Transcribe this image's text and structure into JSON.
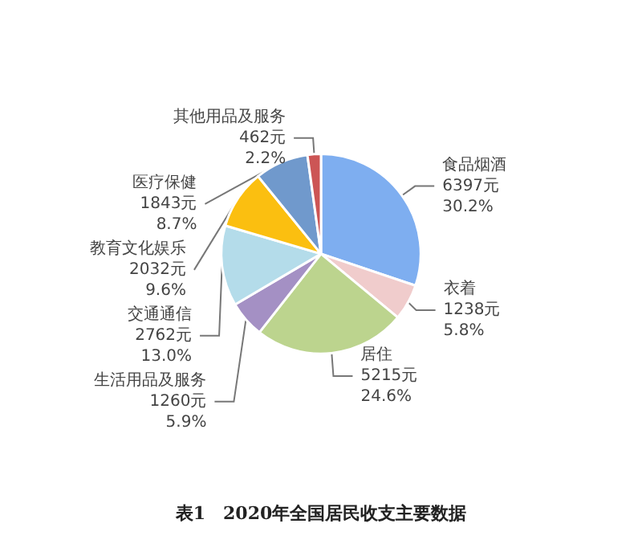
{
  "chart_data": {
    "type": "pie",
    "title": "表1　2020年全国居民收支主要数据",
    "categories": [
      "食品烟酒",
      "衣着",
      "居住",
      "生活用品及服务",
      "交通通信",
      "教育文化娱乐",
      "医疗保健",
      "其他用品及服务"
    ],
    "values": [
      6397,
      1238,
      5215,
      1260,
      2762,
      2032,
      1843,
      462
    ],
    "value_labels": [
      "6397元\n30.2%",
      "1238元\n5.8%",
      "5215元\n24.6%",
      "1260元\n5.9%",
      "2762元\n13.0%",
      "2032元\n9.6%",
      "1843元\n8.7%",
      "462元\n2.2%"
    ],
    "colors": [
      "#7eaef0",
      "#f0cccc",
      "#bcd48e",
      "#a490c4",
      "#b4dcea",
      "#fbbf10",
      "#7099cc",
      "#cc5555"
    ]
  }
}
